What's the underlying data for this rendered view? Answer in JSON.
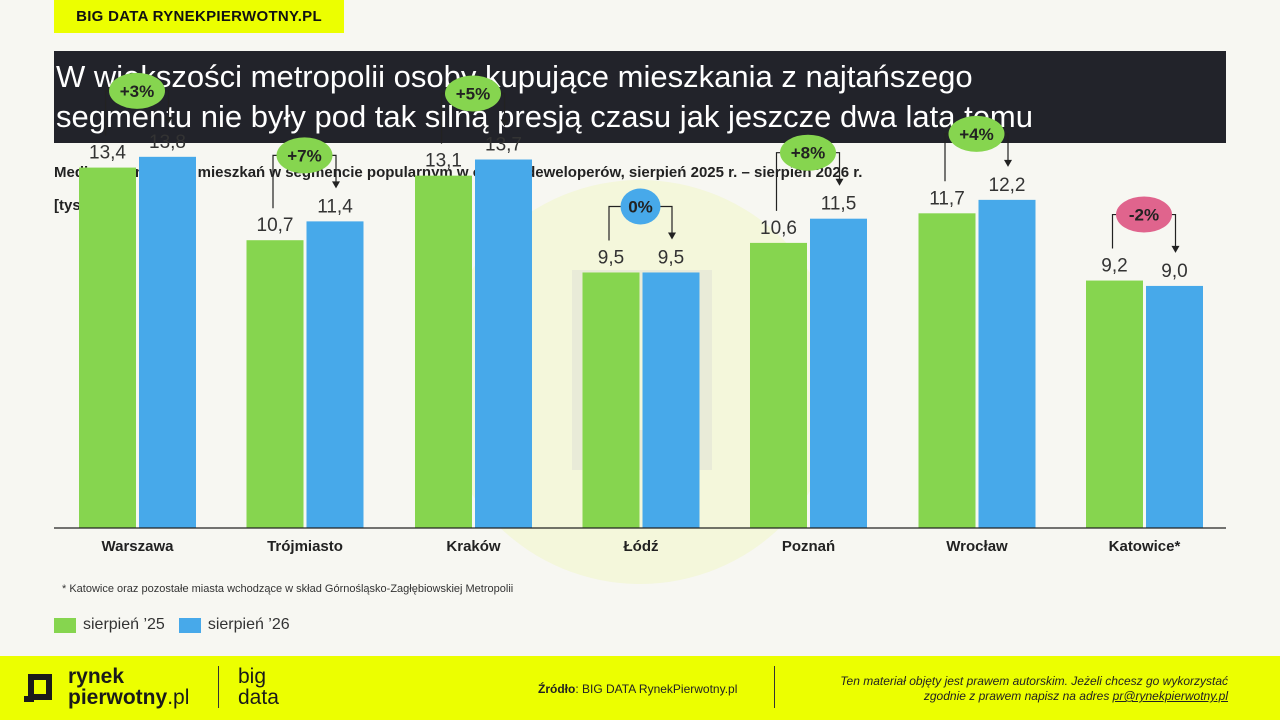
{
  "brand_tag": "BIG DATA RYNEKPIERWOTNY.PL",
  "title_lines": [
    "W większości metropolii osoby kupujące mieszkania z najtańszego",
    "segmentu nie były pod tak silną presją czasu jak jeszcze dwa lata temu"
  ],
  "colors": {
    "green": "#86d54f",
    "blue": "#47a9ea",
    "pink": "#e0648d",
    "brand_yellow": "#ecff00",
    "title_bg": "#22232a"
  },
  "chart_data": {
    "type": "bar",
    "title": "Mediana ceny mkw. mieszkań w segmencie popularnym w ofercie deweloperów, sierpień 2025 r. – sierpień 2026 r.",
    "ylabel": "[tys. zł]",
    "categories": [
      "Warszawa",
      "Trójmiasto",
      "Kraków",
      "Łódź",
      "Poznań",
      "Wrocław",
      "Katowice*"
    ],
    "series": [
      {
        "name": "sierpień ’25",
        "color": "#86d54f",
        "values": [
          13.4,
          10.7,
          13.1,
          9.5,
          10.6,
          11.7,
          9.2
        ],
        "labels": [
          "13,4",
          "10,7",
          "13,1",
          "9,5",
          "10,6",
          "11,7",
          "9,2"
        ]
      },
      {
        "name": "sierpień ’26",
        "color": "#47a9ea",
        "values": [
          13.8,
          11.4,
          13.7,
          9.5,
          11.5,
          12.2,
          9.0
        ],
        "labels": [
          "13,8",
          "11,4",
          "13,7",
          "9,5",
          "11,5",
          "12,2",
          "9,0"
        ]
      }
    ],
    "changes": [
      "+3%",
      "+7%",
      "+5%",
      "0%",
      "+8%",
      "+4%",
      "-2%"
    ],
    "change_colors": [
      "#86d54f",
      "#86d54f",
      "#86d54f",
      "#47a9ea",
      "#86d54f",
      "#86d54f",
      "#e0648d"
    ],
    "ylim": [
      0,
      14.5
    ],
    "grid": false,
    "legend_position": "bottom-left"
  },
  "footnote": "* Katowice oraz pozostałe miasta wchodzące w skład Górnośląsko-Zagłębiowskiej Metropolii",
  "footer": {
    "logo_line1": "rynek",
    "logo_line2a": "pierwotny",
    "logo_line2b": ".pl",
    "big_line1": "big",
    "big_line2": "data",
    "source_label": "Źródło",
    "source_text": ": BIG DATA RynekPierwotny.pl",
    "copyright_line1": "Ten materiał objęty jest prawem autorskim. Jeżeli chcesz go wykorzystać",
    "copyright_line2": "zgodnie z prawem napisz na adres ",
    "email": "pr@rynekpierwotny.pl"
  }
}
